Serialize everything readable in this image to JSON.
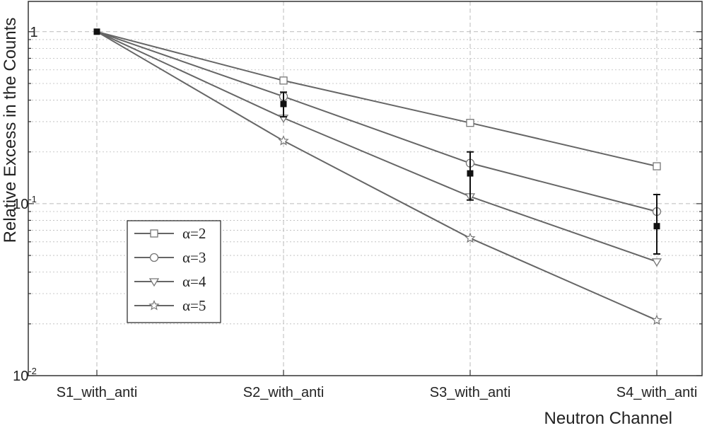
{
  "chart_data": {
    "type": "line",
    "xlabel": "Neutron Channel",
    "ylabel": "Relative Excess in the Counts",
    "categories": [
      "S1_with_anti",
      "S2_with_anti",
      "S3_with_anti",
      "S4_with_anti"
    ],
    "yscale": "log",
    "ylim": [
      0.01,
      1.5
    ],
    "yticks": [
      {
        "value": 1,
        "base": "1",
        "exp": ""
      },
      {
        "value": 0.1,
        "base": "10",
        "exp": "-1"
      },
      {
        "value": 0.01,
        "base": "10",
        "exp": "-2"
      }
    ],
    "grid": true,
    "legend_position": "bottom-left",
    "series": [
      {
        "name": "α=2",
        "marker": "square",
        "values": [
          1,
          0.52,
          0.295,
          0.165
        ]
      },
      {
        "name": "α=3",
        "marker": "circle",
        "values": [
          1,
          0.42,
          0.172,
          0.09
        ]
      },
      {
        "name": "α=4",
        "marker": "triangle-down",
        "values": [
          1,
          0.315,
          0.11,
          0.046
        ]
      },
      {
        "name": "α=5",
        "marker": "star",
        "values": [
          1,
          0.232,
          0.063,
          0.021
        ]
      }
    ],
    "measured": {
      "marker": "filled-square",
      "values": [
        1,
        0.38,
        0.15,
        0.074
      ],
      "err_low": [
        null,
        0.32,
        0.105,
        0.051
      ],
      "err_high": [
        null,
        0.445,
        0.2,
        0.113
      ]
    },
    "colors": {
      "series_line": "#666666",
      "marker_stroke": "#777777",
      "measured": "#111111",
      "grid": "#bbbbbb",
      "axis": "#333333"
    }
  }
}
